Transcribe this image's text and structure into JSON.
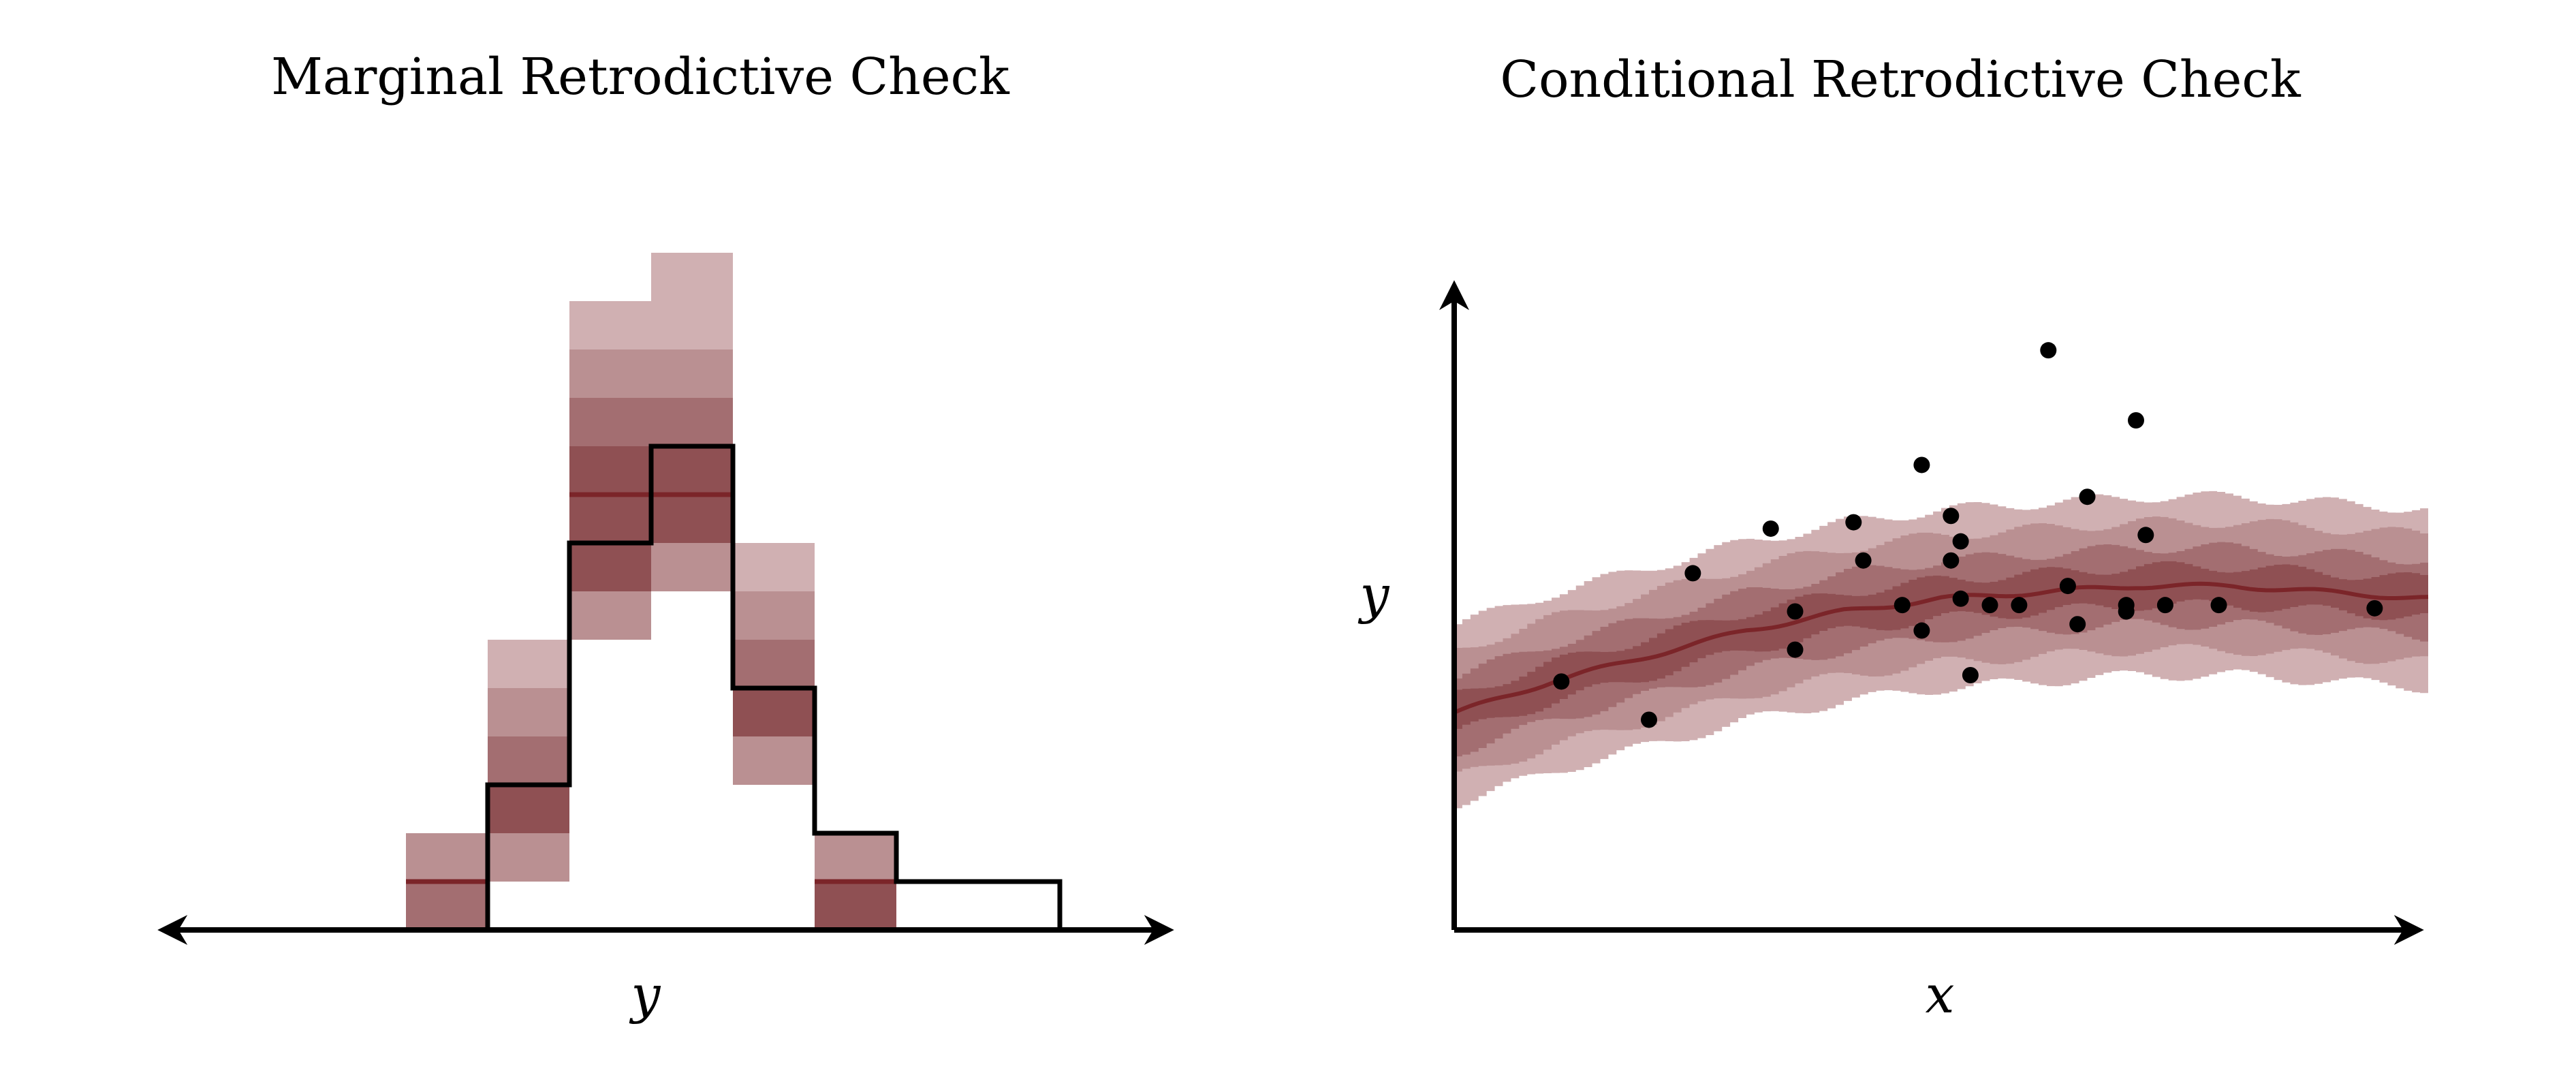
{
  "colors": {
    "ribbon_light": "#d0b0b2",
    "ribbon_mid_light": "#ba9092",
    "ribbon_mid": "#a36e71",
    "ribbon_dark": "#8f5053",
    "median": "#7b2529",
    "observed": "#000000",
    "background": "#ffffff"
  },
  "left_panel": {
    "title": "Marginal Retrodictive Check",
    "xlabel": "y"
  },
  "right_panel": {
    "title": "Conditional Retrodictive Check",
    "xlabel": "x",
    "ylabel": "y"
  },
  "chart_data": [
    {
      "type": "bar",
      "title": "Marginal Retrodictive Check",
      "xlabel": "y",
      "ylabel": "",
      "ylim": [
        0,
        14
      ],
      "bins": 8,
      "observed_histogram": [
        0,
        3,
        8,
        10,
        5,
        2,
        1,
        1
      ],
      "predictive_quantiles": {
        "levels": [
          "q10",
          "q20",
          "q30",
          "q40",
          "q50",
          "q60",
          "q70",
          "q80",
          "q90"
        ],
        "per_bin": [
          [
            0,
            0,
            0,
            1,
            1,
            1,
            1,
            2,
            2
          ],
          [
            1,
            1,
            2,
            2,
            3,
            3,
            4,
            5,
            6
          ],
          [
            6,
            6,
            7,
            7,
            9,
            10,
            11,
            12,
            13
          ],
          [
            7,
            7,
            8,
            8,
            9,
            10,
            11,
            12,
            14
          ],
          [
            3,
            3,
            4,
            4,
            5,
            5,
            6,
            7,
            8
          ],
          [
            0,
            0,
            0,
            0,
            1,
            1,
            1,
            2,
            2
          ],
          [
            0,
            0,
            0,
            0,
            0,
            0,
            0,
            0,
            0
          ],
          [
            0,
            0,
            0,
            0,
            0,
            0,
            0,
            0,
            0
          ]
        ]
      }
    },
    {
      "type": "scatter",
      "title": "Conditional Retrodictive Check",
      "xlabel": "x",
      "ylabel": "y",
      "xlim": [
        0,
        100
      ],
      "ylim": [
        0,
        100
      ],
      "ribbon": {
        "description_levels": [
          "outer",
          "mid_outer",
          "mid_inner",
          "inner"
        ],
        "median": [
          [
            0,
            34
          ],
          [
            10,
            39
          ],
          [
            20,
            43
          ],
          [
            30,
            47
          ],
          [
            40,
            50
          ],
          [
            50,
            52
          ],
          [
            60,
            53
          ],
          [
            70,
            54
          ],
          [
            80,
            54
          ],
          [
            90,
            53
          ],
          [
            100,
            52
          ]
        ],
        "half_widths": [
          14,
          10,
          6,
          3
        ]
      },
      "points": [
        [
          11,
          39
        ],
        [
          20,
          33
        ],
        [
          24.5,
          56
        ],
        [
          32.5,
          63
        ],
        [
          35,
          50
        ],
        [
          35,
          44
        ],
        [
          41,
          64
        ],
        [
          42,
          58
        ],
        [
          46,
          51
        ],
        [
          48,
          73
        ],
        [
          48,
          47
        ],
        [
          51,
          65
        ],
        [
          51,
          58
        ],
        [
          52,
          61
        ],
        [
          52,
          52
        ],
        [
          53,
          40
        ],
        [
          55,
          51
        ],
        [
          58,
          51
        ],
        [
          61,
          91
        ],
        [
          63,
          54
        ],
        [
          64,
          48
        ],
        [
          65,
          68
        ],
        [
          69,
          50
        ],
        [
          69,
          51
        ],
        [
          70,
          80
        ],
        [
          71,
          62
        ],
        [
          73,
          51
        ],
        [
          78.5,
          51
        ],
        [
          94.5,
          50.5
        ]
      ]
    }
  ]
}
